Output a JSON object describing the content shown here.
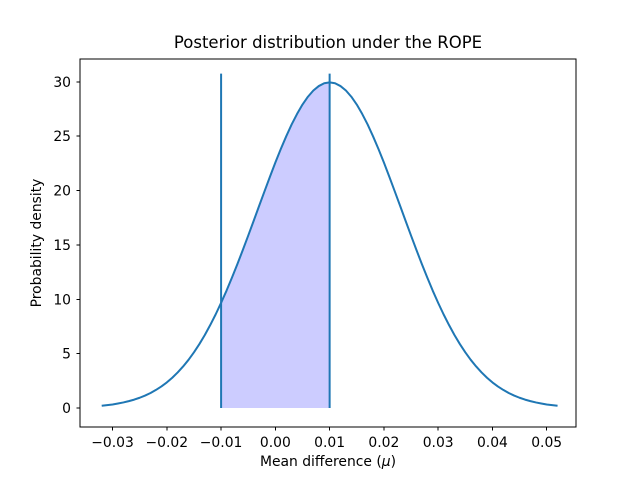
{
  "chart_data": {
    "type": "area",
    "title": "Posterior distribution under the ROPE",
    "xlabel": "Mean difference (μ)",
    "xlabel_parts": {
      "prefix": "Mean difference (",
      "mu": "μ",
      "suffix": ")"
    },
    "ylabel": "Probability density",
    "xlim": [
      -0.036,
      0.0554
    ],
    "ylim": [
      -1.75,
      32.1
    ],
    "x_ticks": [
      -0.03,
      -0.02,
      -0.01,
      0.0,
      0.01,
      0.02,
      0.03,
      0.04,
      0.05
    ],
    "x_tick_labels": [
      "−0.03",
      "−0.02",
      "−0.01",
      "0.00",
      "0.01",
      "0.02",
      "0.03",
      "0.04",
      "0.05"
    ],
    "y_ticks": [
      0,
      5,
      10,
      15,
      20,
      25,
      30
    ],
    "y_tick_labels": [
      "0",
      "5",
      "10",
      "15",
      "20",
      "25",
      "30"
    ],
    "grid": false,
    "legend": false,
    "line_color": "#1f77b4",
    "fill_color": "#ccccff",
    "axis_color": "#000000",
    "rope": {
      "lower": -0.01,
      "upper": 0.01,
      "line_bottom": 0,
      "line_top": 30.75,
      "line_color": "#1f77b4",
      "shaded_region": "area under posterior density between ROPE bounds −0.01 and 0.01"
    },
    "curve": {
      "name": "posterior-density",
      "points": [
        [
          -0.032,
          0.2
        ],
        [
          -0.031,
          0.26
        ],
        [
          -0.03,
          0.32
        ],
        [
          -0.029,
          0.41
        ],
        [
          -0.028,
          0.51
        ],
        [
          -0.027,
          0.63
        ],
        [
          -0.026,
          0.77
        ],
        [
          -0.025,
          0.94
        ],
        [
          -0.024,
          1.14
        ],
        [
          -0.023,
          1.38
        ],
        [
          -0.022,
          1.66
        ],
        [
          -0.021,
          1.98
        ],
        [
          -0.02,
          2.35
        ],
        [
          -0.019,
          2.78
        ],
        [
          -0.018,
          3.27
        ],
        [
          -0.017,
          3.82
        ],
        [
          -0.016,
          4.43
        ],
        [
          -0.015,
          5.12
        ],
        [
          -0.014,
          5.88
        ],
        [
          -0.013,
          6.71
        ],
        [
          -0.012,
          7.63
        ],
        [
          -0.011,
          8.61
        ],
        [
          -0.01,
          9.67
        ],
        [
          -0.009,
          10.79
        ],
        [
          -0.008,
          11.99
        ],
        [
          -0.007,
          13.23
        ],
        [
          -0.006,
          14.53
        ],
        [
          -0.005,
          15.86
        ],
        [
          -0.004,
          17.21
        ],
        [
          -0.003,
          18.58
        ],
        [
          -0.002,
          19.93
        ],
        [
          -0.001,
          21.27
        ],
        [
          0.0,
          22.58
        ],
        [
          0.001,
          23.82
        ],
        [
          0.002,
          24.99
        ],
        [
          0.003,
          26.08
        ],
        [
          0.004,
          27.05
        ],
        [
          0.005,
          27.91
        ],
        [
          0.006,
          28.63
        ],
        [
          0.007,
          29.2
        ],
        [
          0.008,
          29.61
        ],
        [
          0.009,
          29.87
        ],
        [
          0.01,
          29.95
        ],
        [
          0.011,
          29.87
        ],
        [
          0.012,
          29.61
        ],
        [
          0.013,
          29.2
        ],
        [
          0.014,
          28.63
        ],
        [
          0.015,
          27.91
        ],
        [
          0.016,
          27.05
        ],
        [
          0.017,
          26.08
        ],
        [
          0.018,
          24.99
        ],
        [
          0.019,
          23.82
        ],
        [
          0.02,
          22.58
        ],
        [
          0.021,
          21.27
        ],
        [
          0.022,
          19.93
        ],
        [
          0.023,
          18.58
        ],
        [
          0.024,
          17.21
        ],
        [
          0.025,
          15.86
        ],
        [
          0.026,
          14.53
        ],
        [
          0.027,
          13.23
        ],
        [
          0.028,
          11.99
        ],
        [
          0.029,
          10.79
        ],
        [
          0.03,
          9.67
        ],
        [
          0.031,
          8.61
        ],
        [
          0.032,
          7.63
        ],
        [
          0.033,
          6.71
        ],
        [
          0.034,
          5.88
        ],
        [
          0.035,
          5.12
        ],
        [
          0.036,
          4.43
        ],
        [
          0.037,
          3.82
        ],
        [
          0.038,
          3.27
        ],
        [
          0.039,
          2.78
        ],
        [
          0.04,
          2.35
        ],
        [
          0.041,
          1.98
        ],
        [
          0.042,
          1.66
        ],
        [
          0.043,
          1.38
        ],
        [
          0.044,
          1.14
        ],
        [
          0.045,
          0.94
        ],
        [
          0.046,
          0.77
        ],
        [
          0.047,
          0.63
        ],
        [
          0.048,
          0.51
        ],
        [
          0.049,
          0.41
        ],
        [
          0.05,
          0.32
        ],
        [
          0.051,
          0.26
        ],
        [
          0.052,
          0.2
        ]
      ]
    }
  }
}
